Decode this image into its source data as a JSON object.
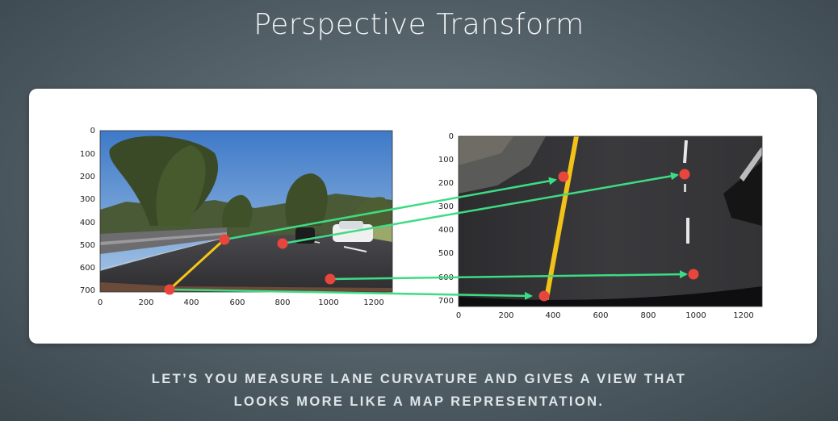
{
  "title": "Perspective Transform",
  "caption": {
    "line1": "LET’S YOU MEASURE LANE CURVATURE AND GIVES A VIEW THAT",
    "line2": "LOOKS MORE LIKE A MAP REPRESENTATION."
  },
  "left_plot": {
    "x_ticks": [
      "0",
      "200",
      "400",
      "600",
      "800",
      "1000",
      "1200"
    ],
    "y_ticks": [
      "0",
      "100",
      "200",
      "300",
      "400",
      "500",
      "600",
      "700"
    ]
  },
  "right_plot": {
    "x_ticks": [
      "0",
      "200",
      "400",
      "600",
      "800",
      "1000",
      "1200"
    ],
    "y_ticks": [
      "0",
      "100",
      "200",
      "300",
      "400",
      "500",
      "600",
      "700"
    ]
  },
  "colors": {
    "point": "#e8453c",
    "arrow": "#3ddc84",
    "lane_line": "#f5c518"
  }
}
